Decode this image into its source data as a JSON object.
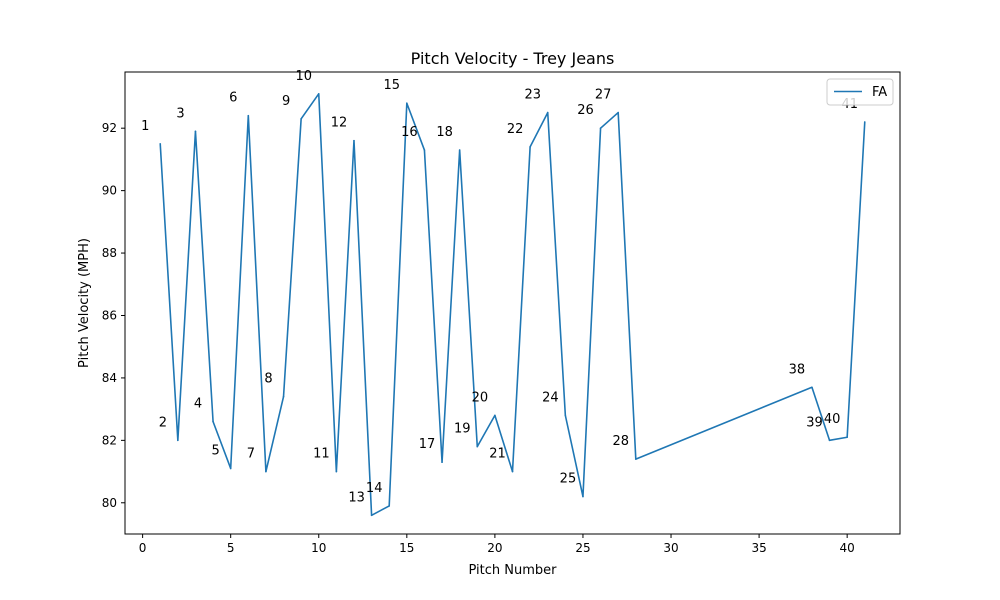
{
  "chart_data": {
    "type": "line",
    "title": "Pitch Velocity - Trey Jeans",
    "xlabel": "Pitch Number",
    "ylabel": "Pitch Velocity (MPH)",
    "xlim": [
      -1,
      43
    ],
    "ylim": [
      79,
      93.8
    ],
    "xticks": [
      0,
      5,
      10,
      15,
      20,
      25,
      30,
      35,
      40
    ],
    "yticks": [
      80,
      82,
      84,
      86,
      88,
      90,
      92
    ],
    "grid": false,
    "legend_position": "top-right",
    "series": [
      {
        "name": "FA",
        "color": "#1f77b4",
        "points": [
          {
            "x": 1,
            "y": 91.5,
            "label": "1"
          },
          {
            "x": 2,
            "y": 82.0,
            "label": "2"
          },
          {
            "x": 3,
            "y": 91.9,
            "label": "3"
          },
          {
            "x": 4,
            "y": 82.6,
            "label": "4"
          },
          {
            "x": 5,
            "y": 81.1,
            "label": "5"
          },
          {
            "x": 6,
            "y": 92.4,
            "label": "6"
          },
          {
            "x": 7,
            "y": 81.0,
            "label": "7"
          },
          {
            "x": 8,
            "y": 83.4,
            "label": "8"
          },
          {
            "x": 9,
            "y": 92.3,
            "label": "9"
          },
          {
            "x": 10,
            "y": 93.1,
            "label": "10"
          },
          {
            "x": 11,
            "y": 81.0,
            "label": "11"
          },
          {
            "x": 12,
            "y": 91.6,
            "label": "12"
          },
          {
            "x": 13,
            "y": 79.6,
            "label": "13"
          },
          {
            "x": 14,
            "y": 79.9,
            "label": "14"
          },
          {
            "x": 15,
            "y": 92.8,
            "label": "15"
          },
          {
            "x": 16,
            "y": 91.3,
            "label": "16"
          },
          {
            "x": 17,
            "y": 81.3,
            "label": "17"
          },
          {
            "x": 18,
            "y": 91.3,
            "label": "18"
          },
          {
            "x": 19,
            "y": 81.8,
            "label": "19"
          },
          {
            "x": 20,
            "y": 82.8,
            "label": "20"
          },
          {
            "x": 21,
            "y": 81.0,
            "label": "21"
          },
          {
            "x": 22,
            "y": 91.4,
            "label": "22"
          },
          {
            "x": 23,
            "y": 92.5,
            "label": "23"
          },
          {
            "x": 24,
            "y": 82.8,
            "label": "24"
          },
          {
            "x": 25,
            "y": 80.2,
            "label": "25"
          },
          {
            "x": 26,
            "y": 92.0,
            "label": "26"
          },
          {
            "x": 27,
            "y": 92.5,
            "label": "27"
          },
          {
            "x": 28,
            "y": 81.4,
            "label": "28"
          },
          {
            "x": 38,
            "y": 83.7,
            "label": "38"
          },
          {
            "x": 39,
            "y": 82.0,
            "label": "39"
          },
          {
            "x": 40,
            "y": 82.1,
            "label": "40"
          },
          {
            "x": 41,
            "y": 92.2,
            "label": "41"
          }
        ]
      }
    ]
  }
}
